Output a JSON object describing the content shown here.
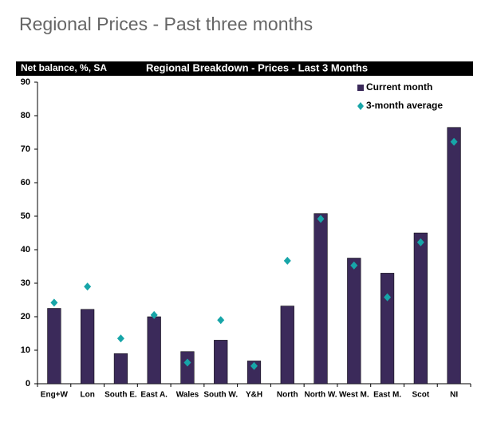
{
  "header": {
    "title": "Regional Prices - Past three months"
  },
  "chart_data": {
    "type": "bar",
    "title": "Regional Breakdown - Prices - Last 3 Months",
    "ylabel": "Net balance, %, SA",
    "categories": [
      "Eng+W",
      "Lon",
      "South E.",
      "East A.",
      "Wales",
      "South W.",
      "Y&H",
      "North",
      "North W.",
      "West M.",
      "East M.",
      "Scot",
      "NI"
    ],
    "series": [
      {
        "name": "Current month",
        "color": "#3b2a5a",
        "marker": "bar",
        "values": [
          22.5,
          22.2,
          9,
          20,
          9.6,
          13,
          6.8,
          23.2,
          50.8,
          37.5,
          33,
          45,
          76.5
        ]
      },
      {
        "name": "3-month average",
        "color": "#17a5a8",
        "marker": "diamond",
        "values": [
          24.2,
          29,
          13.5,
          20.5,
          6.3,
          19,
          5.3,
          36.7,
          49.2,
          35.3,
          25.8,
          42.2,
          72.2
        ]
      }
    ],
    "ylim": [
      0,
      90
    ],
    "yticks": [
      0,
      10,
      20,
      30,
      40,
      50,
      60,
      70,
      80,
      90
    ],
    "grid": false,
    "legend": "top-right"
  }
}
